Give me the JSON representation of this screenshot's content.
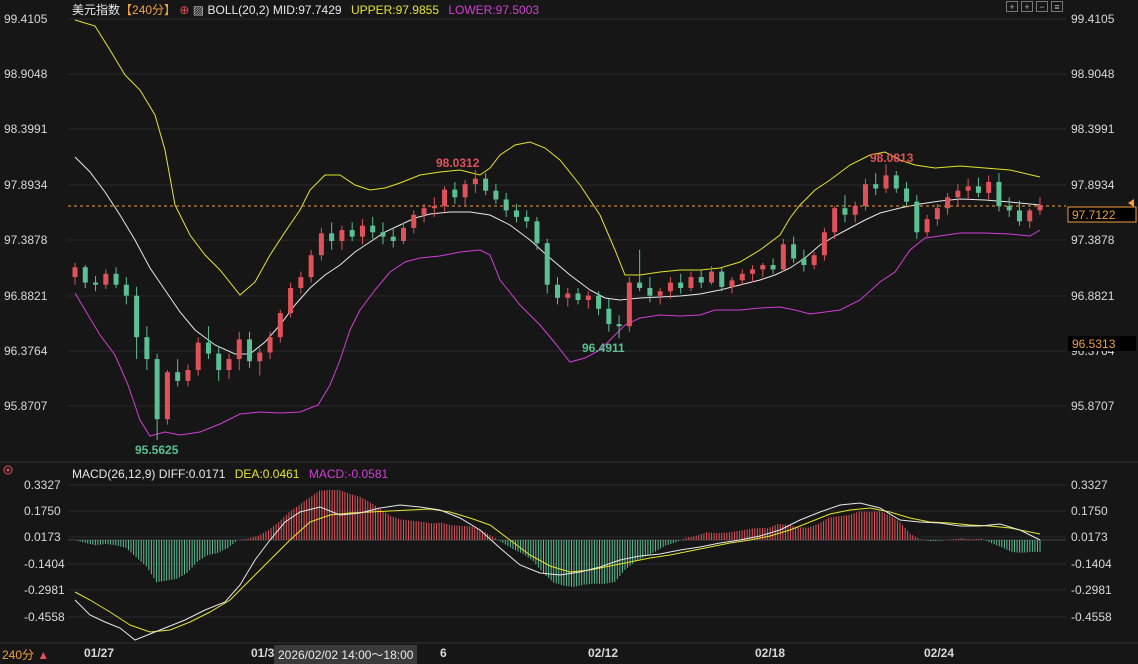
{
  "header": {
    "symbol": "美元指数",
    "period": "【240分】",
    "boll": "BOLL(20,2)",
    "mid": "MID:97.7429",
    "upper": "UPPER:97.9855",
    "lower": "LOWER:97.5003"
  },
  "macd_header": {
    "name": "MACD(26,12,9)",
    "diff": "DIFF:0.0171",
    "dea": "DEA:0.0461",
    "macd": "MACD:-0.0581"
  },
  "footer": {
    "period_button": "240分",
    "arrow": "▲",
    "crosshair_time": "2026/02/02 14:00～18:00"
  },
  "price_axis": {
    "ticks": [
      "99.4105",
      "98.9048",
      "98.3991",
      "97.8934",
      "97.3878",
      "96.8821",
      "96.3764",
      "95.8707"
    ],
    "current_price": "97.7122",
    "cursor_price": "96.5313"
  },
  "macd_axis": {
    "ticks": [
      "0.3327",
      "0.1750",
      "0.0173",
      "-0.1404",
      "-0.2981",
      "-0.4558"
    ]
  },
  "date_axis": {
    "ticks": [
      "01/27",
      "01/3",
      "6",
      "02/12",
      "02/18",
      "02/24"
    ]
  },
  "annotations": {
    "high1": "98.0312",
    "high2": "98.0813",
    "low1": "95.5625",
    "low2": "96.4911"
  },
  "colors": {
    "up": "#e0525a",
    "down": "#5bc094",
    "mid": "#e8e8e8",
    "upper": "#e6e32a",
    "lower": "#d13fd6",
    "price_line": "#f0a040"
  },
  "chart_data": {
    "type": "candlestick",
    "title": "美元指数",
    "ylim": [
      95.62,
      99.45
    ],
    "current_price": 97.7122,
    "candles": [
      [
        97.05,
        97.18,
        96.98,
        97.14
      ],
      [
        97.14,
        97.16,
        96.95,
        97.0
      ],
      [
        97.0,
        97.06,
        96.92,
        96.98
      ],
      [
        96.98,
        97.12,
        96.94,
        97.08
      ],
      [
        97.08,
        97.14,
        96.95,
        96.98
      ],
      [
        96.98,
        97.05,
        96.8,
        96.88
      ],
      [
        96.88,
        96.96,
        96.3,
        96.5
      ],
      [
        96.5,
        96.6,
        96.2,
        96.3
      ],
      [
        96.3,
        96.35,
        95.56,
        95.75
      ],
      [
        95.75,
        96.2,
        95.7,
        96.18
      ],
      [
        96.18,
        96.3,
        96.05,
        96.1
      ],
      [
        96.1,
        96.25,
        96.05,
        96.2
      ],
      [
        96.2,
        96.5,
        96.15,
        96.45
      ],
      [
        96.45,
        96.6,
        96.3,
        96.35
      ],
      [
        96.35,
        96.42,
        96.1,
        96.2
      ],
      [
        96.2,
        96.35,
        96.12,
        96.3
      ],
      [
        96.3,
        96.55,
        96.2,
        96.48
      ],
      [
        96.48,
        96.55,
        96.22,
        96.28
      ],
      [
        96.28,
        96.4,
        96.15,
        96.36
      ],
      [
        96.36,
        96.55,
        96.3,
        96.5
      ],
      [
        96.5,
        96.75,
        96.45,
        96.72
      ],
      [
        96.72,
        97.0,
        96.68,
        96.95
      ],
      [
        96.95,
        97.1,
        96.9,
        97.05
      ],
      [
        97.05,
        97.3,
        97.0,
        97.25
      ],
      [
        97.25,
        97.5,
        97.2,
        97.45
      ],
      [
        97.45,
        97.55,
        97.3,
        97.38
      ],
      [
        97.38,
        97.52,
        97.3,
        97.48
      ],
      [
        97.48,
        97.55,
        97.38,
        97.42
      ],
      [
        97.42,
        97.58,
        97.35,
        97.52
      ],
      [
        97.52,
        97.6,
        97.4,
        97.46
      ],
      [
        97.46,
        97.55,
        97.35,
        97.42
      ],
      [
        97.42,
        97.5,
        97.32,
        97.38
      ],
      [
        97.38,
        97.55,
        97.35,
        97.5
      ],
      [
        97.5,
        97.66,
        97.45,
        97.62
      ],
      [
        97.62,
        97.72,
        97.55,
        97.68
      ],
      [
        97.68,
        97.78,
        97.6,
        97.7
      ],
      [
        97.7,
        97.88,
        97.65,
        97.85
      ],
      [
        97.85,
        97.92,
        97.72,
        97.78
      ],
      [
        97.78,
        97.94,
        97.7,
        97.9
      ],
      [
        97.9,
        98.03,
        97.82,
        97.95
      ],
      [
        97.95,
        98.0,
        97.8,
        97.84
      ],
      [
        97.84,
        97.9,
        97.72,
        97.76
      ],
      [
        97.76,
        97.82,
        97.6,
        97.66
      ],
      [
        97.66,
        97.72,
        97.55,
        97.6
      ],
      [
        97.6,
        97.66,
        97.5,
        97.56
      ],
      [
        97.56,
        97.6,
        97.3,
        97.36
      ],
      [
        97.36,
        97.4,
        96.9,
        96.98
      ],
      [
        96.98,
        97.05,
        96.8,
        96.86
      ],
      [
        96.86,
        96.95,
        96.78,
        96.9
      ],
      [
        96.9,
        96.95,
        96.8,
        96.84
      ],
      [
        96.84,
        96.92,
        96.76,
        96.88
      ],
      [
        96.88,
        96.92,
        96.7,
        96.76
      ],
      [
        96.76,
        96.85,
        96.55,
        96.62
      ],
      [
        96.62,
        96.7,
        96.49,
        96.6
      ],
      [
        96.6,
        97.05,
        96.55,
        97.0
      ],
      [
        97.0,
        97.3,
        96.92,
        96.95
      ],
      [
        96.95,
        97.05,
        96.82,
        96.88
      ],
      [
        96.88,
        96.95,
        96.8,
        96.92
      ],
      [
        96.92,
        97.05,
        96.85,
        97.0
      ],
      [
        97.0,
        97.08,
        96.9,
        96.95
      ],
      [
        96.95,
        97.1,
        96.92,
        97.05
      ],
      [
        97.05,
        97.12,
        96.95,
        97.0
      ],
      [
        97.0,
        97.15,
        96.98,
        97.1
      ],
      [
        97.1,
        97.14,
        96.92,
        96.96
      ],
      [
        96.96,
        97.05,
        96.9,
        97.02
      ],
      [
        97.02,
        97.12,
        96.98,
        97.08
      ],
      [
        97.08,
        97.16,
        97.0,
        97.12
      ],
      [
        97.12,
        97.18,
        97.05,
        97.16
      ],
      [
        97.16,
        97.22,
        97.08,
        97.12
      ],
      [
        97.12,
        97.4,
        97.1,
        97.35
      ],
      [
        97.35,
        97.42,
        97.18,
        97.22
      ],
      [
        97.22,
        97.3,
        97.1,
        97.16
      ],
      [
        97.16,
        97.28,
        97.12,
        97.25
      ],
      [
        97.25,
        97.5,
        97.2,
        97.46
      ],
      [
        97.46,
        97.7,
        97.4,
        97.68
      ],
      [
        97.68,
        97.8,
        97.55,
        97.62
      ],
      [
        97.62,
        97.74,
        97.55,
        97.7
      ],
      [
        97.7,
        97.95,
        97.66,
        97.9
      ],
      [
        97.9,
        98.0,
        97.8,
        97.86
      ],
      [
        97.86,
        98.08,
        97.82,
        97.98
      ],
      [
        97.98,
        98.02,
        97.82,
        97.86
      ],
      [
        97.86,
        97.92,
        97.7,
        97.74
      ],
      [
        97.74,
        97.8,
        97.4,
        97.46
      ],
      [
        97.46,
        97.62,
        97.42,
        97.58
      ],
      [
        97.58,
        97.72,
        97.52,
        97.68
      ],
      [
        97.68,
        97.82,
        97.62,
        97.78
      ],
      [
        97.78,
        97.9,
        97.7,
        97.84
      ],
      [
        97.84,
        97.95,
        97.76,
        97.88
      ],
      [
        97.88,
        97.96,
        97.78,
        97.82
      ],
      [
        97.82,
        97.98,
        97.76,
        97.92
      ],
      [
        97.92,
        98.0,
        97.65,
        97.7
      ],
      [
        97.7,
        97.78,
        97.6,
        97.66
      ],
      [
        97.66,
        97.75,
        97.52,
        97.56
      ],
      [
        97.56,
        97.68,
        97.5,
        97.66
      ],
      [
        97.66,
        97.78,
        97.62,
        97.71
      ]
    ],
    "macd": {
      "diff_range": [
        -0.52,
        0.38
      ]
    }
  }
}
